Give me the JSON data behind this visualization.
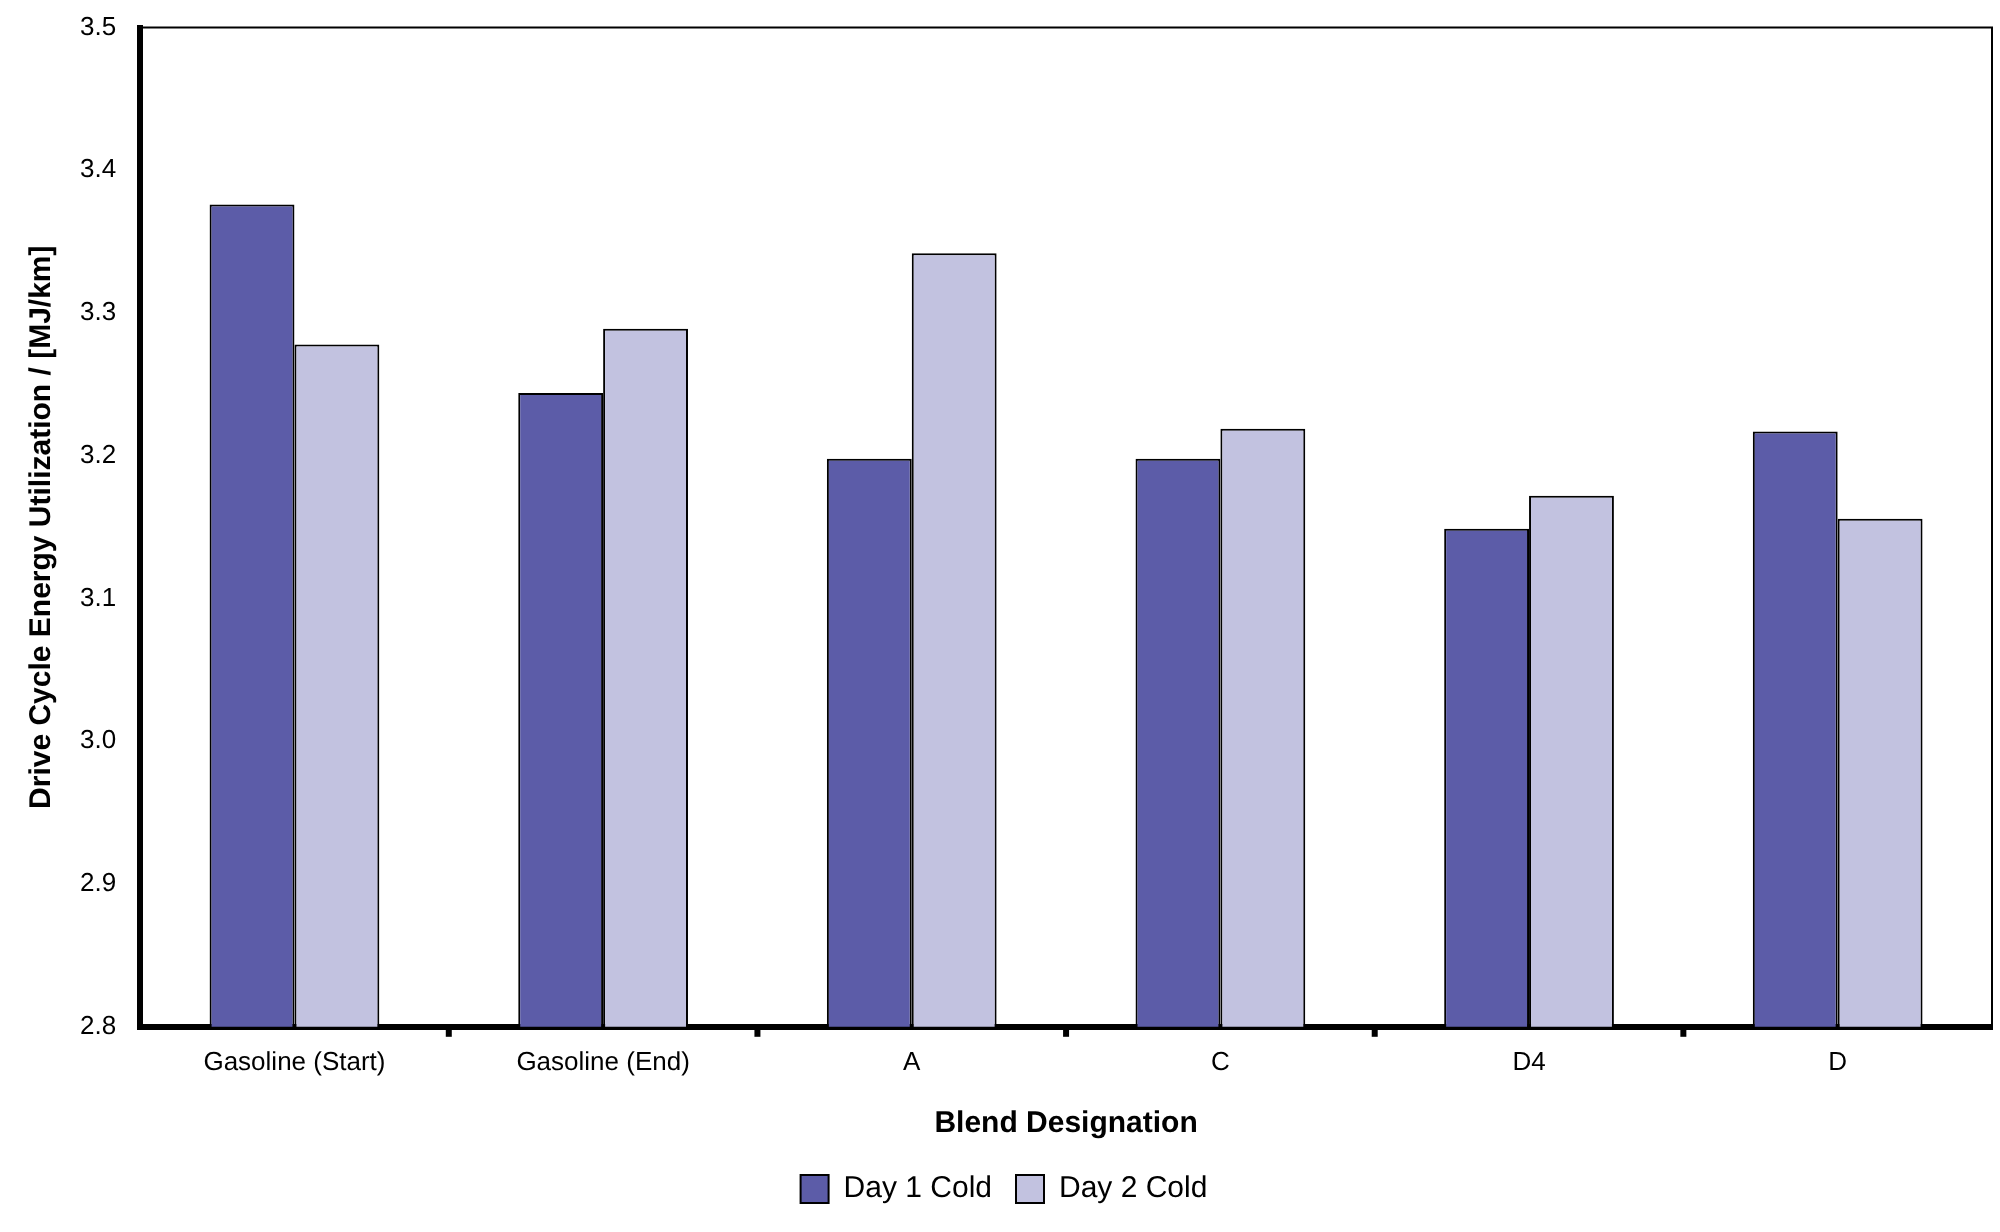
{
  "chart_data": {
    "type": "bar",
    "xlabel": "Blend Designation",
    "ylabel": "Drive Cycle Energy Utilization / [MJ/km]",
    "categories": [
      "Gasoline (Start)",
      "Gasoline (End)",
      "A",
      "C",
      "D4",
      "D"
    ],
    "series": [
      {
        "name": "Day 1 Cold",
        "color": "#5c5ca8",
        "values": [
          3.376,
          3.244,
          3.198,
          3.198,
          3.149,
          3.217
        ]
      },
      {
        "name": "Day 2 Cold",
        "color": "#c2c2e0",
        "values": [
          3.278,
          3.289,
          3.342,
          3.219,
          3.172,
          3.156
        ]
      }
    ],
    "ylim": [
      2.8,
      3.5
    ],
    "yticks": [
      2.8,
      2.9,
      {
        "value": 3,
        "label": "3.0"
      },
      3.1,
      3.2,
      3.3,
      3.4,
      3.5
    ],
    "grid": false,
    "legend": "bottom"
  }
}
